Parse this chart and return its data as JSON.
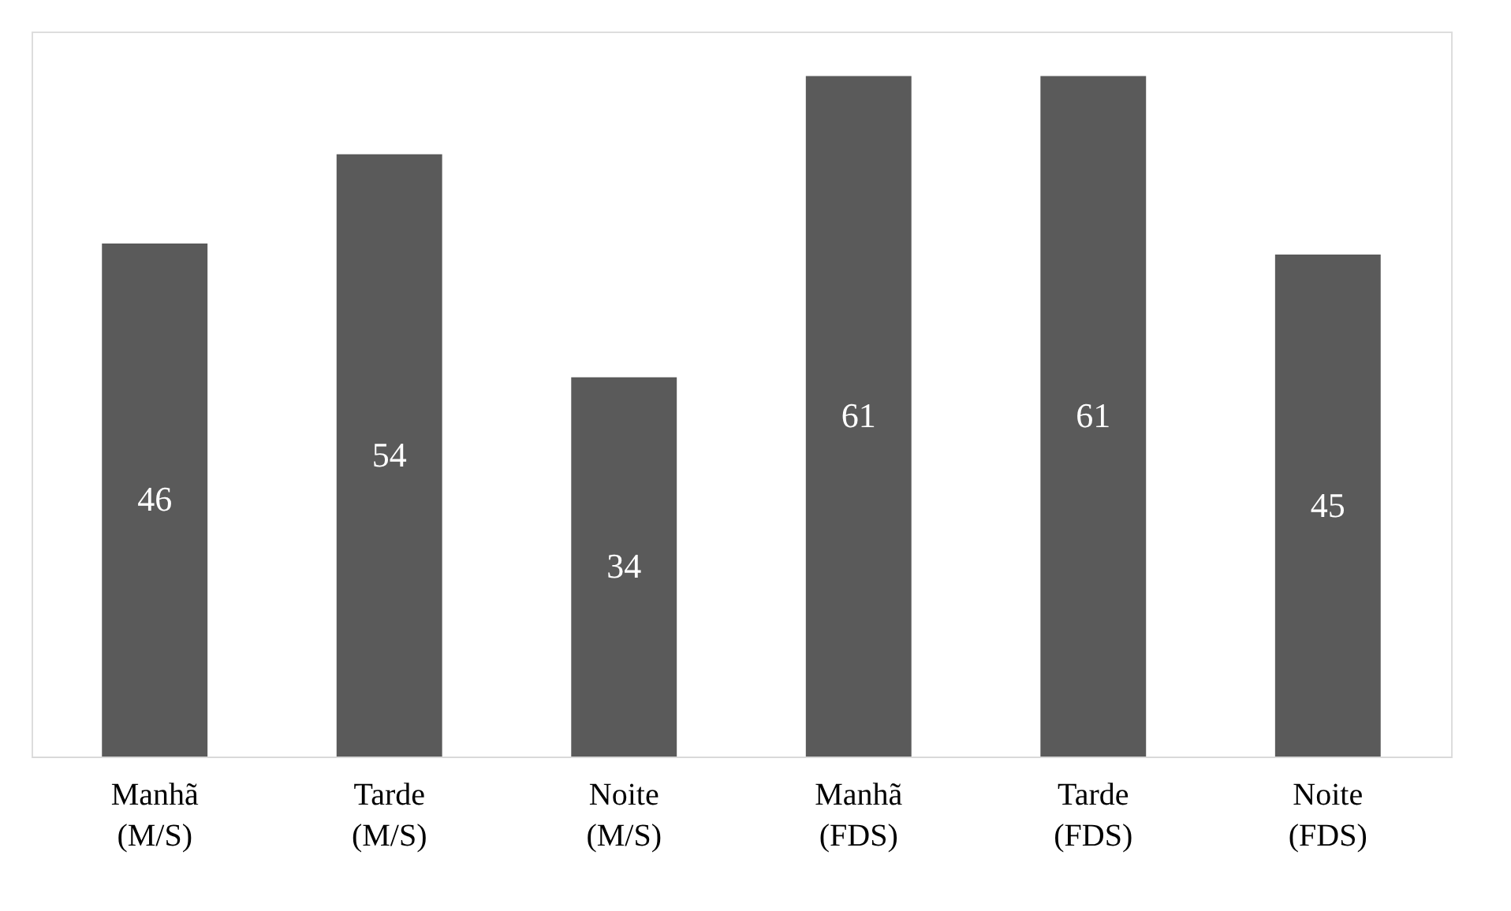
{
  "chart_data": {
    "type": "bar",
    "categories": [
      "Manhã (M/S)",
      "Tarde (M/S)",
      "Noite (M/S)",
      "Manhã (FDS)",
      "Tarde (FDS)",
      "Noite (FDS)"
    ],
    "values": [
      46,
      54,
      34,
      61,
      61,
      45
    ],
    "color": "#5a5a5a",
    "data_labels": true
  }
}
